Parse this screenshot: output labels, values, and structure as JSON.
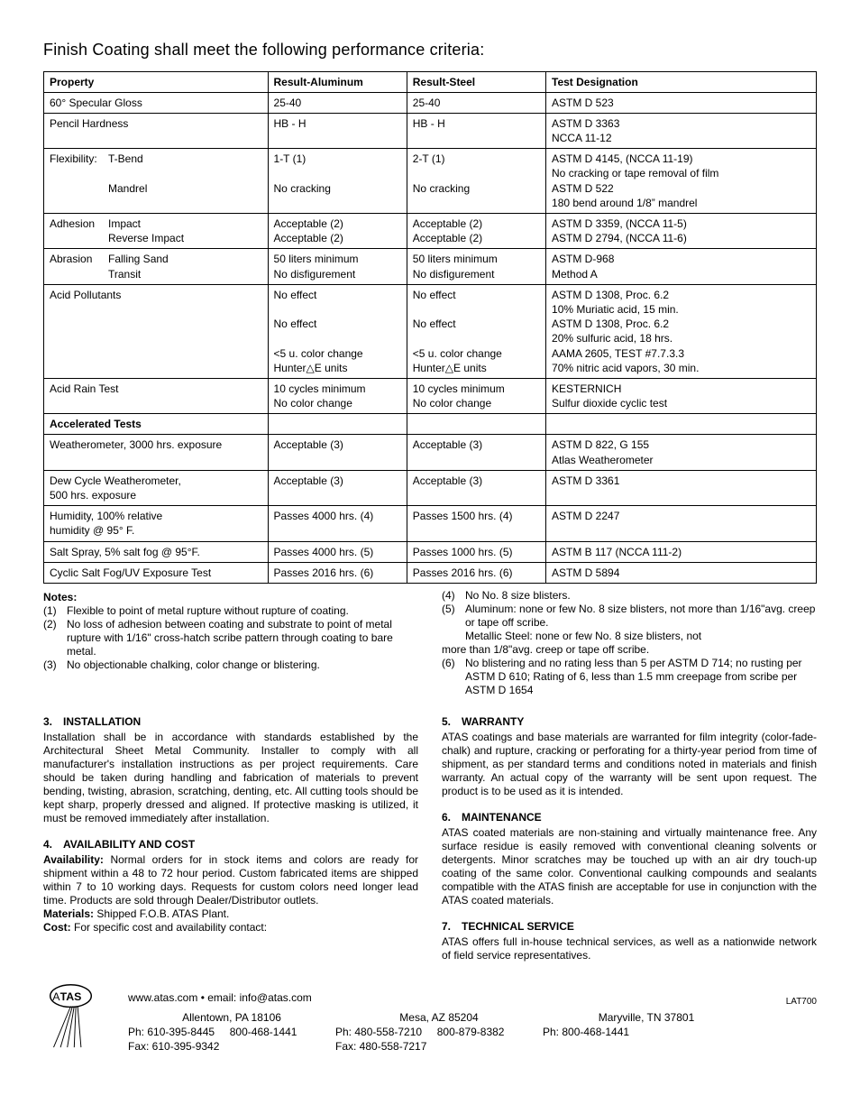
{
  "title": "Finish Coating shall meet the following performance criteria:",
  "table": {
    "headers": [
      "Property",
      "Result-Aluminum",
      "Result-Steel",
      "Test Designation"
    ],
    "rows": [
      {
        "prop": "60° Specular Gloss",
        "al": "25-40",
        "st": "25-40",
        "td": "ASTM  D 523"
      },
      {
        "prop": "Pencil Hardness",
        "al": "HB - H",
        "st": "HB - H",
        "td": "ASTM  D 3363\nNCCA 11-12"
      },
      {
        "prop_main": "Flexibility:",
        "sub1": "T-Bend",
        "sub2": "Mandrel",
        "al": "1-T (1)\n\nNo cracking",
        "st": "2-T (1)\n\nNo cracking",
        "td": "ASTM  D 4145, (NCCA 11-19)\nNo cracking or tape removal of  film\nASTM D 522\n180 bend around 1/8”  mandrel"
      },
      {
        "prop_main": "Adhesion",
        "sub1": "Impact",
        "sub2": "Reverse Impact",
        "al": "Acceptable (2)\nAcceptable (2)",
        "st": "Acceptable (2)\nAcceptable (2)",
        "td": "ASTM  D 3359, (NCCA 11-5)\nASTM  D 2794, (NCCA 11-6)"
      },
      {
        "prop_main": "Abrasion",
        "sub1": "Falling Sand",
        "sub2": "Transit",
        "al": "50 liters minimum\nNo disfigurement",
        "st": "50 liters minimum\nNo disfigurement",
        "td": "ASTM  D-968\nMethod A"
      },
      {
        "prop": "Acid Pollutants",
        "al": "No effect\n\nNo effect\n\n<5 u. color change\nHunter△E units",
        "st": "No effect\n\nNo effect\n\n<5 u. color change\nHunter△E units",
        "td": "ASTM  D 1308, Proc. 6.2\n10% Muriatic acid, 15 min.\nASTM  D 1308, Proc. 6.2\n20% sulfuric acid, 18 hrs.\nAAMA 2605, TEST #7.7.3.3\n70% nitric acid vapors, 30 min."
      },
      {
        "prop": "Acid Rain Test",
        "al": "10 cycles minimum\nNo color change",
        "st": "10 cycles minimum\nNo color change",
        "td": "KESTERNICH\nSulfur dioxide cyclic test"
      },
      {
        "section": "Accelerated Tests"
      },
      {
        "prop": "Weatherometer, 3000 hrs. exposure",
        "al": "Acceptable (3)",
        "st": "Acceptable (3)",
        "td": "ASTM  D 822, G 155\nAtlas Weatherometer"
      },
      {
        "prop": "Dew Cycle Weatherometer,\n  500 hrs. exposure",
        "al": "Acceptable (3)",
        "st": "Acceptable (3)",
        "td": "ASTM  D 3361"
      },
      {
        "prop": "Humidity, 100% relative\n  humidity @ 95° F.",
        "al": "Passes 4000 hrs. (4)",
        "st": "Passes 1500 hrs. (4)",
        "td": "ASTM  D 2247"
      },
      {
        "prop": "Salt Spray, 5% salt fog @ 95°F.",
        "al": "Passes 4000 hrs. (5)",
        "st": "Passes 1000 hrs. (5)",
        "td": "ASTM B 117 (NCCA 111-2)"
      },
      {
        "prop": "Cyclic Salt Fog/UV Exposure Test",
        "al": "Passes 2016 hrs. (6)",
        "st": "Passes 2016 hrs. (6)",
        "td": "ASTM D 5894"
      }
    ]
  },
  "notes_heading": "Notes:",
  "notes_left": [
    {
      "n": "(1)",
      "t": "Flexible to point of metal rupture without rupture of coating."
    },
    {
      "n": "(2)",
      "t": "No loss of adhesion between coating and substrate to point of metal rupture with 1/16\" cross-hatch scribe pattern through coating to bare metal."
    },
    {
      "n": "(3)",
      "t": "No objectionable chalking, color change or blistering."
    }
  ],
  "notes_right": [
    {
      "n": "(4)",
      "t": "No  No. 8 size blisters."
    },
    {
      "n": "(5)",
      "t": "Aluminum:  none or few No. 8 size blisters, not more than 1/16\"avg. creep or tape off scribe.\nMetallic Steel:  none or few No. 8 size blisters, not"
    },
    {
      "n": "",
      "t": "more than 1/8\"avg. creep or tape off scribe.",
      "outdent": true
    },
    {
      "n": "(6)",
      "t": "No blistering and no rating less than 5 per ASTM D 714; no rusting per ASTM D 610; Rating of 6, less than 1.5 mm creepage from scribe per ASTM D 1654"
    }
  ],
  "sections_left": [
    {
      "num": "3.",
      "h": "INSTALLATION",
      "body": "Installation shall be in accordance with standards established by the Architectural Sheet Metal Community. Installer to comply with all manufacturer's installation instructions as per project requirements. Care should be taken during handling and fabrication of materials to prevent bending, twisting, abrasion, scratching, denting, etc.  All cutting tools should be kept sharp, properly dressed and aligned.  If protective masking is utilized, it must be removed immediately after installation."
    },
    {
      "num": "4.",
      "h": "AVAILABILITY AND COST",
      "runs": [
        {
          "b": "Availability:",
          "t": "  Normal orders for in stock items and colors are ready for shipment within a 48 to 72 hour period.  Custom fabricated items are shipped within 7 to 10 working days.  Requests for custom colors need longer lead time.  Products are sold through Dealer/Distributor outlets."
        },
        {
          "b": "Materials:",
          "t": "  Shipped F.O.B. ATAS Plant.",
          "br": true
        },
        {
          "b": "Cost:",
          "t": "  For specific cost and availability contact:",
          "br": true
        }
      ]
    }
  ],
  "sections_right": [
    {
      "num": "5.",
      "h": "WARRANTY",
      "body": "ATAS coatings and base materials are warranted for film integrity (color-fade-chalk) and rupture, cracking or perforating for a thirty-year period from time of shipment, as per standard terms and conditions noted in materials and finish warranty.  An actual copy of the warranty will be sent upon request.  The product is to be used as it is intended."
    },
    {
      "num": "6.",
      "h": "MAINTENANCE",
      "body": "ATAS coated materials are non-staining and virtually maintenance free.  Any surface residue is easily removed with conventional cleaning solvents or detergents.  Minor scratches may be touched up with an air dry touch-up coating of the same color.  Conventional caulking compounds and sealants compatible with the ATAS finish are acceptable for use in conjunction with the ATAS coated materials."
    },
    {
      "num": "7.",
      "h": "TECHNICAL SERVICE",
      "body": "ATAS offers full in-house technical services, as well as a nationwide network of field service representatives."
    }
  ],
  "footer": {
    "line1": "www.atas.com • email: info@atas.com",
    "locs": [
      {
        "city": "Allentown, PA 18106",
        "ph": "Ph: 610-395-8445",
        "tf": "800-468-1441",
        "fax": "Fax: 610-395-9342"
      },
      {
        "city": "Mesa, AZ 85204",
        "ph": "Ph: 480-558-7210",
        "tf": "800-879-8382",
        "fax": "Fax: 480-558-7217"
      },
      {
        "city": "Maryville, TN 37801",
        "ph": "Ph: 800-468-1441",
        "tf": "",
        "fax": ""
      }
    ],
    "code": "LAT700"
  }
}
